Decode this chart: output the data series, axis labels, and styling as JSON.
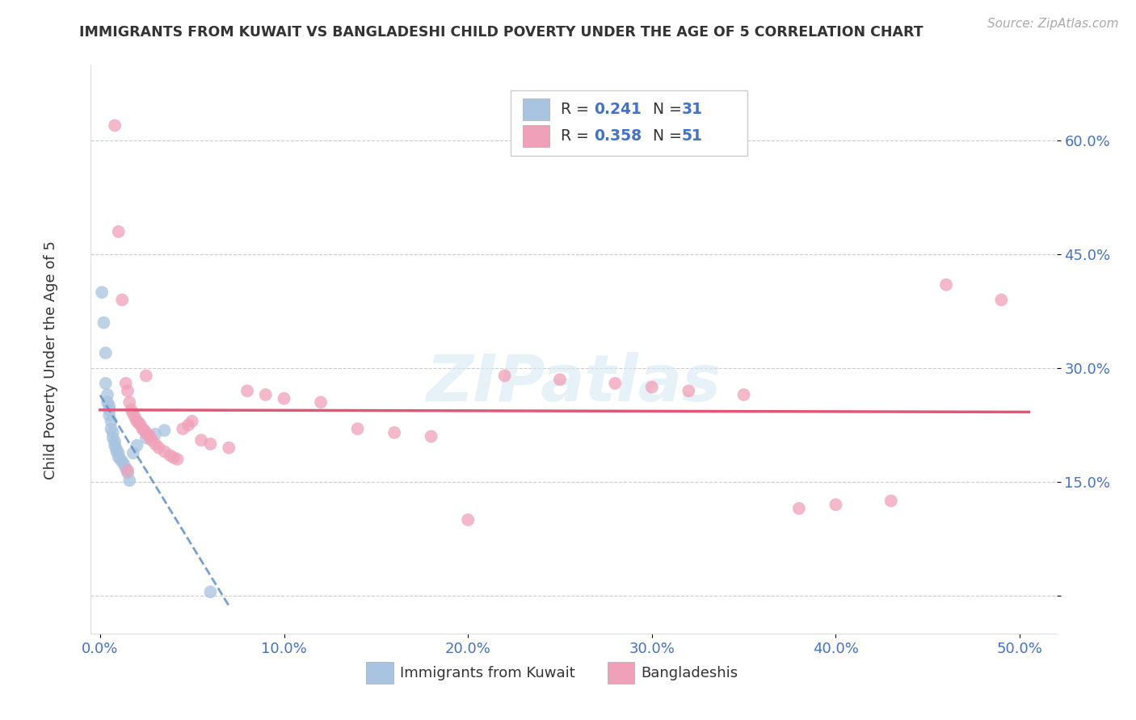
{
  "title": "IMMIGRANTS FROM KUWAIT VS BANGLADESHI CHILD POVERTY UNDER THE AGE OF 5 CORRELATION CHART",
  "source": "Source: ZipAtlas.com",
  "ylabel": "Child Poverty Under the Age of 5",
  "blue_color": "#a8c4e0",
  "pink_color": "#f0a0b8",
  "trend_blue": "#6090c8",
  "trend_pink": "#e05878",
  "label1": "Immigrants from Kuwait",
  "label2": "Bangladeshis",
  "watermark": "ZIPatlas",
  "blue_x": [
    0.001,
    0.002,
    0.003,
    0.003,
    0.004,
    0.004,
    0.005,
    0.005,
    0.005,
    0.006,
    0.006,
    0.007,
    0.007,
    0.008,
    0.008,
    0.009,
    0.009,
    0.01,
    0.01,
    0.011,
    0.012,
    0.013,
    0.014,
    0.015,
    0.016,
    0.018,
    0.02,
    0.025,
    0.03,
    0.035,
    0.06
  ],
  "blue_y": [
    0.4,
    0.36,
    0.32,
    0.28,
    0.265,
    0.255,
    0.25,
    0.245,
    0.238,
    0.23,
    0.22,
    0.215,
    0.208,
    0.203,
    0.198,
    0.193,
    0.19,
    0.188,
    0.183,
    0.18,
    0.177,
    0.173,
    0.168,
    0.162,
    0.152,
    0.188,
    0.198,
    0.208,
    0.213,
    0.218,
    0.005
  ],
  "pink_x": [
    0.008,
    0.01,
    0.012,
    0.014,
    0.015,
    0.016,
    0.017,
    0.018,
    0.019,
    0.02,
    0.021,
    0.022,
    0.023,
    0.024,
    0.025,
    0.026,
    0.027,
    0.028,
    0.03,
    0.032,
    0.035,
    0.038,
    0.04,
    0.042,
    0.045,
    0.048,
    0.05,
    0.055,
    0.06,
    0.07,
    0.08,
    0.09,
    0.1,
    0.12,
    0.14,
    0.16,
    0.18,
    0.2,
    0.22,
    0.25,
    0.28,
    0.3,
    0.32,
    0.35,
    0.38,
    0.4,
    0.43,
    0.46,
    0.49,
    0.015,
    0.025
  ],
  "pink_y": [
    0.62,
    0.48,
    0.39,
    0.28,
    0.27,
    0.255,
    0.245,
    0.24,
    0.235,
    0.23,
    0.228,
    0.225,
    0.22,
    0.218,
    0.215,
    0.212,
    0.21,
    0.205,
    0.2,
    0.195,
    0.19,
    0.185,
    0.182,
    0.18,
    0.22,
    0.225,
    0.23,
    0.205,
    0.2,
    0.195,
    0.27,
    0.265,
    0.26,
    0.255,
    0.22,
    0.215,
    0.21,
    0.1,
    0.29,
    0.285,
    0.28,
    0.275,
    0.27,
    0.265,
    0.115,
    0.12,
    0.125,
    0.41,
    0.39,
    0.165,
    0.29
  ],
  "r1": "0.241",
  "n1": "31",
  "r2": "0.358",
  "n2": "51",
  "xlim": [
    -0.005,
    0.52
  ],
  "ylim": [
    -0.05,
    0.7
  ],
  "yticks": [
    0.0,
    0.15,
    0.3,
    0.45,
    0.6
  ],
  "ytick_labels": [
    "",
    "15.0%",
    "30.0%",
    "45.0%",
    "60.0%"
  ],
  "xticks": [
    0.0,
    0.1,
    0.2,
    0.3,
    0.4,
    0.5
  ],
  "xtick_labels": [
    "0.0%",
    "10.0%",
    "20.0%",
    "30.0%",
    "40.0%",
    "50.0%"
  ]
}
